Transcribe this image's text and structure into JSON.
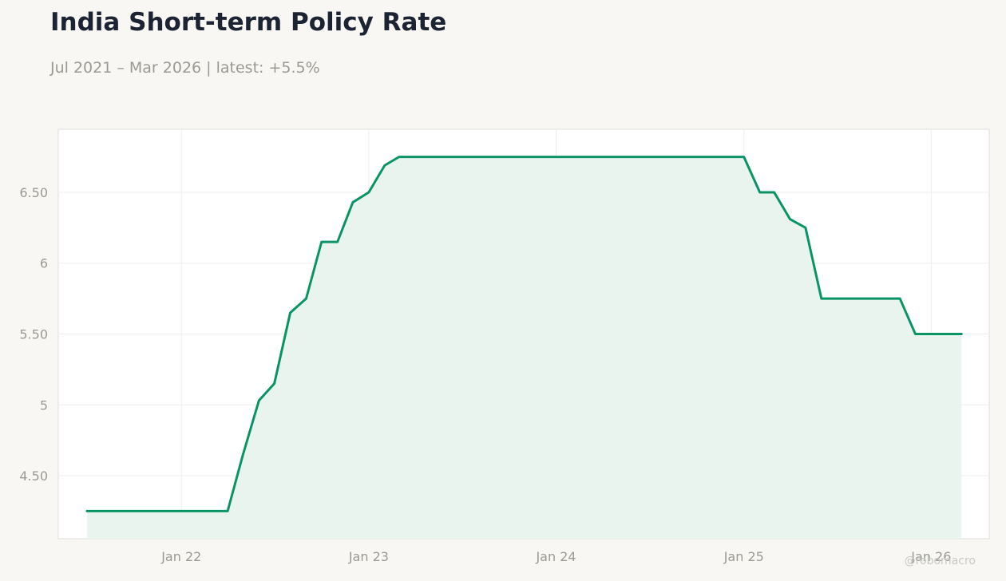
{
  "header": {
    "title": "India Short-term Policy Rate",
    "subtitle": "Jul 2021 – Mar 2026 | latest: +5.5%"
  },
  "watermark": "@robomacro",
  "colors": {
    "background": "#f8f7f4",
    "plot_background": "#ffffff",
    "line": "#0a9466",
    "fill": "#e9f4ef",
    "grid": "#eeeeec",
    "axis_text": "#9a9a94"
  },
  "chart_data": {
    "type": "area",
    "title": "India Short-term Policy Rate",
    "subtitle": "Jul 2021 – Mar 2026 | latest: +5.5%",
    "xlabel": "",
    "ylabel": "",
    "x_ticks": [
      {
        "date": "2022-01-01",
        "label": "Jan 22"
      },
      {
        "date": "2023-01-01",
        "label": "Jan 23"
      },
      {
        "date": "2024-01-01",
        "label": "Jan 24"
      },
      {
        "date": "2025-01-01",
        "label": "Jan 25"
      },
      {
        "date": "2026-01-01",
        "label": "Jan 26"
      }
    ],
    "y_ticks": [
      {
        "value": 4.5,
        "label": "4.50"
      },
      {
        "value": 5.0,
        "label": "5"
      },
      {
        "value": 5.5,
        "label": "5.50"
      },
      {
        "value": 6.0,
        "label": "6"
      },
      {
        "value": 6.5,
        "label": "6.50"
      }
    ],
    "xlim": [
      "2021-05-06",
      "2026-04-24"
    ],
    "ylim": [
      4.055,
      6.945
    ],
    "grid": true,
    "series": [
      {
        "points": [
          [
            "2021-07-01",
            4.25
          ],
          [
            "2022-03-01",
            4.25
          ],
          [
            "2022-04-01",
            4.25
          ],
          [
            "2022-05-01",
            4.65
          ],
          [
            "2022-06-01",
            5.03
          ],
          [
            "2022-07-01",
            5.15
          ],
          [
            "2022-08-01",
            5.65
          ],
          [
            "2022-09-01",
            5.75
          ],
          [
            "2022-10-01",
            6.15
          ],
          [
            "2022-11-01",
            6.15
          ],
          [
            "2022-12-01",
            6.43
          ],
          [
            "2023-01-01",
            6.5
          ],
          [
            "2023-02-01",
            6.69
          ],
          [
            "2023-03-01",
            6.75
          ],
          [
            "2024-12-01",
            6.75
          ],
          [
            "2025-01-01",
            6.75
          ],
          [
            "2025-02-01",
            6.5
          ],
          [
            "2025-03-01",
            6.5
          ],
          [
            "2025-04-01",
            6.31
          ],
          [
            "2025-05-01",
            6.25
          ],
          [
            "2025-06-01",
            5.75
          ],
          [
            "2025-07-01",
            5.75
          ],
          [
            "2025-11-01",
            5.75
          ],
          [
            "2025-12-01",
            5.5
          ],
          [
            "2026-01-01",
            5.5
          ],
          [
            "2026-03-01",
            5.5
          ]
        ]
      }
    ]
  }
}
